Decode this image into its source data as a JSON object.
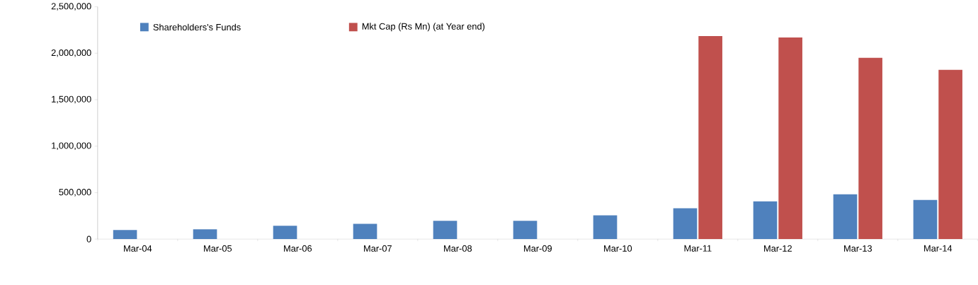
{
  "chart_data": {
    "type": "bar",
    "categories": [
      "Mar-04",
      "Mar-05",
      "Mar-06",
      "Mar-07",
      "Mar-08",
      "Mar-09",
      "Mar-10",
      "Mar-11",
      "Mar-12",
      "Mar-13",
      "Mar-14"
    ],
    "series": [
      {
        "name": "Shareholders's Funds",
        "color": "#4f81bd",
        "values": [
          98000,
          105000,
          143000,
          165000,
          196000,
          196000,
          256000,
          331000,
          407000,
          482000,
          422000
        ]
      },
      {
        "name": "Mkt Cap (Rs Mn) (at Year end)",
        "color": "#c0504d",
        "values": [
          null,
          null,
          null,
          null,
          null,
          null,
          null,
          2184000,
          2169000,
          1950000,
          1822000
        ]
      }
    ],
    "ylim": [
      0,
      2500000
    ],
    "yticks": [
      0,
      {
        "value": 500000,
        "label": "500,000"
      },
      {
        "value": 1000000,
        "label": "1,000,000"
      },
      {
        "value": 1500000,
        "label": "1,500,000"
      },
      {
        "value": 2000000,
        "label": "2,000,000"
      },
      {
        "value": 2500000,
        "label": "2,500,000"
      }
    ],
    "legend": "top",
    "grid": false
  }
}
